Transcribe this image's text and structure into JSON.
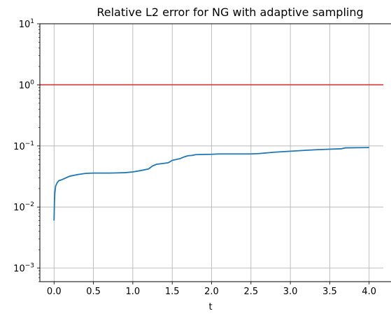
{
  "chart_data": {
    "type": "line",
    "title": "Relative L2 error for NG with adaptive sampling",
    "xlabel": "t",
    "ylabel": "",
    "xlim": [
      -0.18,
      4.18
    ],
    "ylim": [
      0.0006,
      10
    ],
    "yscale": "log",
    "grid": true,
    "xticks": [
      0.0,
      0.5,
      1.0,
      1.5,
      2.0,
      2.5,
      3.0,
      3.5,
      4.0
    ],
    "xtick_labels": [
      "0.0",
      "0.5",
      "1.0",
      "1.5",
      "2.0",
      "2.5",
      "3.0",
      "3.5",
      "4.0"
    ],
    "yticks": [
      0.001,
      0.01,
      0.1,
      1,
      10
    ],
    "ytick_labels": [
      {
        "base": "10",
        "exp": "−3"
      },
      {
        "base": "10",
        "exp": "−2"
      },
      {
        "base": "10",
        "exp": "−1"
      },
      {
        "base": "10",
        "exp": "0"
      },
      {
        "base": "10",
        "exp": "1"
      }
    ],
    "hline": {
      "y": 1,
      "color": "#d62728"
    },
    "series": [
      {
        "color": "#1f77b4",
        "x": [
          0.0,
          0.005,
          0.01,
          0.02,
          0.04,
          0.06,
          0.1,
          0.15,
          0.2,
          0.3,
          0.4,
          0.5,
          0.6,
          0.7,
          0.8,
          0.9,
          1.0,
          1.1,
          1.2,
          1.25,
          1.3,
          1.35,
          1.45,
          1.5,
          1.6,
          1.65,
          1.7,
          1.75,
          1.8,
          2.0,
          2.1,
          2.3,
          2.5,
          2.6,
          2.8,
          3.0,
          3.2,
          3.35,
          3.55,
          3.65,
          3.7,
          4.0
        ],
        "y": [
          0.006,
          0.012,
          0.017,
          0.022,
          0.025,
          0.027,
          0.028,
          0.03,
          0.032,
          0.034,
          0.0355,
          0.036,
          0.036,
          0.036,
          0.0362,
          0.0365,
          0.0375,
          0.0395,
          0.042,
          0.047,
          0.05,
          0.051,
          0.053,
          0.058,
          0.062,
          0.066,
          0.069,
          0.07,
          0.072,
          0.073,
          0.074,
          0.074,
          0.074,
          0.075,
          0.079,
          0.082,
          0.085,
          0.087,
          0.089,
          0.09,
          0.093,
          0.094
        ]
      }
    ]
  }
}
